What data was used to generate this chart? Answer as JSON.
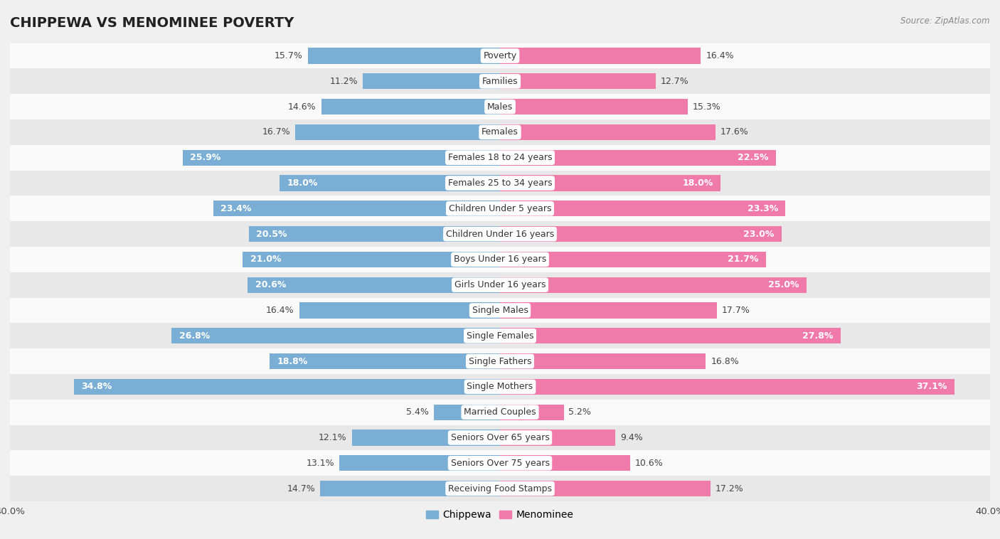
{
  "title": "CHIPPEWA VS MENOMINEE POVERTY",
  "source": "Source: ZipAtlas.com",
  "categories": [
    "Poverty",
    "Families",
    "Males",
    "Females",
    "Females 18 to 24 years",
    "Females 25 to 34 years",
    "Children Under 5 years",
    "Children Under 16 years",
    "Boys Under 16 years",
    "Girls Under 16 years",
    "Single Males",
    "Single Females",
    "Single Fathers",
    "Single Mothers",
    "Married Couples",
    "Seniors Over 65 years",
    "Seniors Over 75 years",
    "Receiving Food Stamps"
  ],
  "chippewa": [
    15.7,
    11.2,
    14.6,
    16.7,
    25.9,
    18.0,
    23.4,
    20.5,
    21.0,
    20.6,
    16.4,
    26.8,
    18.8,
    34.8,
    5.4,
    12.1,
    13.1,
    14.7
  ],
  "menominee": [
    16.4,
    12.7,
    15.3,
    17.6,
    22.5,
    18.0,
    23.3,
    23.0,
    21.7,
    25.0,
    17.7,
    27.8,
    16.8,
    37.1,
    5.2,
    9.4,
    10.6,
    17.2
  ],
  "chippewa_color": "#7aaed4",
  "menominee_color": "#f07aaa",
  "background_color": "#f0f0f0",
  "row_bg_light": "#fafafa",
  "row_bg_dark": "#e8e8e8",
  "xlim": 40.0,
  "bar_height": 0.62,
  "label_fontsize": 9.0,
  "category_fontsize": 9.0,
  "title_fontsize": 14,
  "legend_fontsize": 10,
  "inside_threshold": 18.0
}
